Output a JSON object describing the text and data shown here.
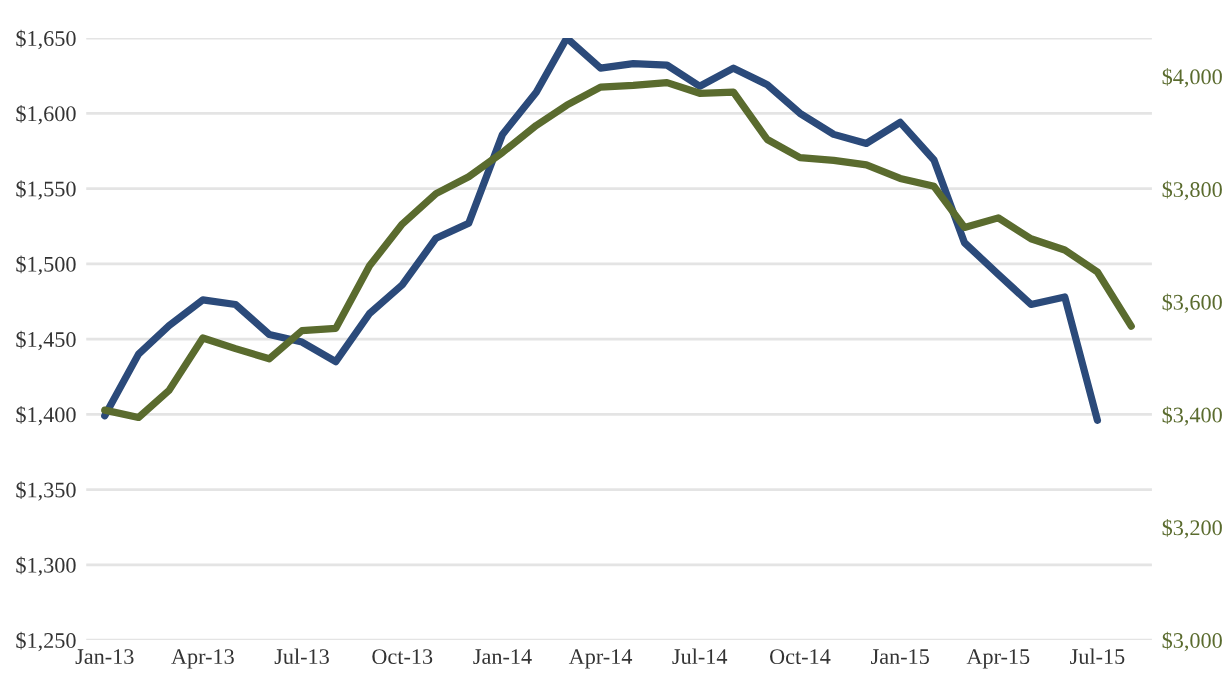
{
  "chart_data": {
    "type": "line",
    "x": [
      "2013-01",
      "2013-02",
      "2013-03",
      "2013-04",
      "2013-05",
      "2013-06",
      "2013-07",
      "2013-08",
      "2013-09",
      "2013-10",
      "2013-11",
      "2013-12",
      "2014-01",
      "2014-02",
      "2014-03",
      "2014-04",
      "2014-05",
      "2014-06",
      "2014-07",
      "2014-08",
      "2014-09",
      "2014-10",
      "2014-11",
      "2014-12",
      "2015-01",
      "2015-02",
      "2015-03",
      "2015-04",
      "2015-05",
      "2015-06",
      "2015-07",
      "2015-08"
    ],
    "series": [
      {
        "color": "#2b4a7a",
        "values": [
          1399,
          1440,
          1459,
          1476,
          1473,
          1453,
          1448,
          1435,
          1467,
          1486,
          1517,
          1527,
          1586,
          1614,
          1650,
          1630,
          1633,
          1632,
          1618,
          1630,
          1619,
          1600,
          1586,
          1580,
          1594,
          1569,
          1514,
          1493,
          1473,
          1478,
          1396,
          null
        ]
      },
      {
        "color": "#5a6b2e",
        "axis": "y2",
        "values": [
          3408,
          3395,
          3443,
          3536,
          3517,
          3499,
          3549,
          3553,
          3664,
          3738,
          3792,
          3822,
          3865,
          3913,
          3949,
          3981,
          3984,
          3989,
          3970,
          3972,
          3888,
          3856,
          3851,
          3843,
          3819,
          3805,
          3732,
          3749,
          3712,
          3692,
          3653,
          3557
        ]
      }
    ],
    "xlim": [
      "2012-12-15",
      "2015-08-20"
    ],
    "xticks": [
      {
        "value": "2013-01",
        "label": "Jan-13"
      },
      {
        "value": "2013-04",
        "label": "Apr-13"
      },
      {
        "value": "2013-07",
        "label": "Jul-13"
      },
      {
        "value": "2013-10",
        "label": "Oct-13"
      },
      {
        "value": "2014-01",
        "label": "Jan-14"
      },
      {
        "value": "2014-04",
        "label": "Apr-14"
      },
      {
        "value": "2014-07",
        "label": "Jul-14"
      },
      {
        "value": "2014-10",
        "label": "Oct-14"
      },
      {
        "value": "2015-01",
        "label": "Jan-15"
      },
      {
        "value": "2015-04",
        "label": "Apr-15"
      },
      {
        "value": "2015-07",
        "label": "Jul-15"
      }
    ],
    "ylim": [
      1250,
      1650
    ],
    "yticks": [
      {
        "value": 1250,
        "label": "$1,250"
      },
      {
        "value": 1300,
        "label": "$1,300"
      },
      {
        "value": 1350,
        "label": "$1,350"
      },
      {
        "value": 1400,
        "label": "$1,400"
      },
      {
        "value": 1450,
        "label": "$1,450"
      },
      {
        "value": 1500,
        "label": "$1,500"
      },
      {
        "value": 1550,
        "label": "$1,550"
      },
      {
        "value": 1600,
        "label": "$1,600"
      },
      {
        "value": 1650,
        "label": "$1,650"
      }
    ],
    "y2lim": [
      3000,
      4068
    ],
    "y2ticks": [
      {
        "value": 3000,
        "label": "$3,000"
      },
      {
        "value": 3200,
        "label": "$3,200"
      },
      {
        "value": 3400,
        "label": "$3,400"
      },
      {
        "value": 3600,
        "label": "$3,600"
      },
      {
        "value": 3800,
        "label": "$3,800"
      },
      {
        "value": 4000,
        "label": "$4,000"
      }
    ],
    "grid": "y",
    "line_style": "solid",
    "marker": "none"
  }
}
